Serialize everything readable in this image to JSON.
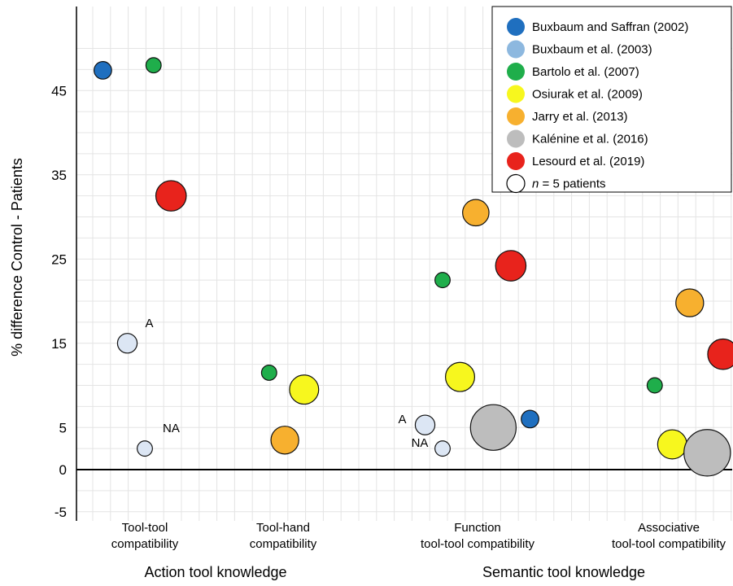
{
  "chart_data": {
    "type": "scatter",
    "variant": "bubble",
    "ylabel": "% difference Control - Patients",
    "ylim": [
      -5,
      51
    ],
    "yticks": [
      -5,
      0,
      5,
      15,
      25,
      35,
      45
    ],
    "grid": true,
    "legend_position": "top-right",
    "categories": [
      {
        "line1": "Tool-tool",
        "line2": "compatibility"
      },
      {
        "line1": "Tool-hand",
        "line2": "compatibility"
      },
      {
        "line1": "Function",
        "line2": "tool-tool compatibility"
      },
      {
        "line1": "Associative",
        "line2": "tool-tool compatibility"
      }
    ],
    "groups": [
      "Action tool knowledge",
      "Semantic tool knowledge"
    ],
    "legend": [
      {
        "label": "Buxbaum and Saffran (2002)",
        "color": "#1f6fbf"
      },
      {
        "label": "Buxbaum et al. (2003)",
        "color": "#8db8df"
      },
      {
        "label": "Bartolo et al. (2007)",
        "color": "#1fae4b"
      },
      {
        "label": "Osiurak et al. (2009)",
        "color": "#f7f71e"
      },
      {
        "label": "Jarry et al. (2013)",
        "color": "#f7b02f"
      },
      {
        "label": "Kalénine et al. (2016)",
        "color": "#bdbdbd"
      },
      {
        "label": "Lesourd et al. (2019)",
        "color": "#e8231c"
      }
    ],
    "size_legend": {
      "italic": "n",
      "rest": " = 5 patients"
    },
    "series": [
      {
        "name": "Buxbaum and Saffran (2002)",
        "color": "#1f6fbf",
        "points": [
          {
            "category": 0,
            "offset": -0.24,
            "y": 47.4,
            "n": 4
          },
          {
            "category": 2,
            "offset": 0.3,
            "y": 6,
            "n": 4
          }
        ]
      },
      {
        "name": "Buxbaum et al. (2003)",
        "color": "#dce6f4",
        "points": [
          {
            "category": 0,
            "offset": -0.1,
            "y": 15,
            "n": 5,
            "label": "A"
          },
          {
            "category": 0,
            "offset": 0.0,
            "y": 2.5,
            "n": 3,
            "label": "NA"
          },
          {
            "category": 2,
            "offset": -0.3,
            "y": 5.3,
            "n": 5,
            "label": "A"
          },
          {
            "category": 2,
            "offset": -0.2,
            "y": 2.5,
            "n": 3,
            "label": "NA"
          }
        ]
      },
      {
        "name": "Bartolo et al. (2007)",
        "color": "#1fae4b",
        "points": [
          {
            "category": 0,
            "offset": 0.05,
            "y": 48,
            "n": 3
          },
          {
            "category": 1,
            "offset": -0.08,
            "y": 11.5,
            "n": 3
          },
          {
            "category": 2,
            "offset": -0.2,
            "y": 22.5,
            "n": 3
          },
          {
            "category": 3,
            "offset": -0.08,
            "y": 10,
            "n": 3
          }
        ]
      },
      {
        "name": "Osiurak et al. (2009)",
        "color": "#f7f71e",
        "points": [
          {
            "category": 1,
            "offset": 0.12,
            "y": 9.5,
            "n": 11
          },
          {
            "category": 2,
            "offset": -0.1,
            "y": 11,
            "n": 11
          },
          {
            "category": 3,
            "offset": 0.02,
            "y": 3,
            "n": 11
          }
        ]
      },
      {
        "name": "Jarry et al. (2013)",
        "color": "#f7b02f",
        "points": [
          {
            "category": 1,
            "offset": 0.01,
            "y": 3.5,
            "n": 10
          },
          {
            "category": 2,
            "offset": -0.01,
            "y": 30.5,
            "n": 9
          },
          {
            "category": 3,
            "offset": 0.12,
            "y": 19.8,
            "n": 10
          }
        ]
      },
      {
        "name": "Kalénine et al. (2016)",
        "color": "#bdbdbd",
        "points": [
          {
            "category": 2,
            "offset": 0.09,
            "y": 5,
            "n": 27
          },
          {
            "category": 3,
            "offset": 0.22,
            "y": 2,
            "n": 28
          }
        ]
      },
      {
        "name": "Lesourd et al. (2019)",
        "color": "#e8231c",
        "points": [
          {
            "category": 0,
            "offset": 0.15,
            "y": 32.5,
            "n": 12
          },
          {
            "category": 2,
            "offset": 0.19,
            "y": 24.2,
            "n": 12
          },
          {
            "category": 3,
            "offset": 0.31,
            "y": 13.7,
            "n": 12
          }
        ]
      }
    ]
  }
}
